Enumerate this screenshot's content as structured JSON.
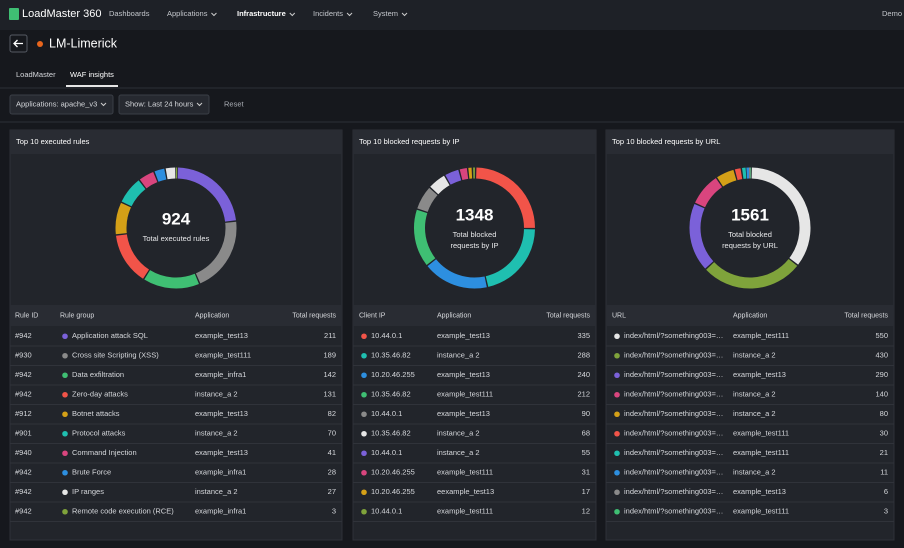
{
  "nav": {
    "brand": "LoadMaster 360",
    "items": [
      "Dashboards",
      "Applications",
      "Infrastructure",
      "Incidents",
      "System"
    ],
    "user": "Demo"
  },
  "header": {
    "title": "LM-Limerick"
  },
  "tabs": [
    "LoadMaster",
    "WAF insights"
  ],
  "filters": [
    "Applications: apache_v3",
    "Show: Last 24 hours"
  ],
  "reset": "Reset",
  "panels": [
    {
      "title": "Top 10 executed rules",
      "total": 924,
      "total_label": [
        "Total executed rules"
      ],
      "columns": [
        "Rule ID",
        "Rule group",
        "Application",
        "Total requests"
      ],
      "rows": [
        {
          "cells": [
            "#942",
            "Application attack SQL",
            "example_test13"
          ],
          "value": 211,
          "color": "#7b61d9"
        },
        {
          "cells": [
            "#930",
            "Cross site Scripting (XSS)",
            "example_test111"
          ],
          "value": 189,
          "color": "#8a8a8a"
        },
        {
          "cells": [
            "#942",
            "Data exfiltration",
            "example_infra1"
          ],
          "value": 142,
          "color": "#3fbf73"
        },
        {
          "cells": [
            "#942",
            "Zero-day attacks",
            "instance_a 2"
          ],
          "value": 131,
          "color": "#f25449"
        },
        {
          "cells": [
            "#912",
            "Botnet attacks",
            "example_test13"
          ],
          "value": 82,
          "color": "#d4a017"
        },
        {
          "cells": [
            "#901",
            "Protocol attacks",
            "instance_a 2"
          ],
          "value": 70,
          "color": "#1fbfb0"
        },
        {
          "cells": [
            "#940",
            "Command Injection",
            "example_test13"
          ],
          "value": 41,
          "color": "#d9457e"
        },
        {
          "cells": [
            "#942",
            "Brute Force",
            "example_infra1"
          ],
          "value": 28,
          "color": "#2d8fe0"
        },
        {
          "cells": [
            "#942",
            "IP ranges",
            "instance_a 2"
          ],
          "value": 27,
          "color": "#e6e6e6"
        },
        {
          "cells": [
            "#942",
            "Remote code execution (RCE)",
            "example_infra1"
          ],
          "value": 3,
          "color": "#7fa33b"
        }
      ]
    },
    {
      "title": "Top 10 blocked requests by IP",
      "total": 1348,
      "total_label": [
        "Total blocked",
        "requests by IP"
      ],
      "columns": [
        "Client IP",
        "Application",
        "Total requests"
      ],
      "rows": [
        {
          "cells": [
            "10.44.0.1",
            "example_test13"
          ],
          "value": 335,
          "color": "#f25449"
        },
        {
          "cells": [
            "10.35.46.82",
            "instance_a 2"
          ],
          "value": 288,
          "color": "#1fbfb0"
        },
        {
          "cells": [
            "10.20.46.255",
            "example_test13"
          ],
          "value": 240,
          "color": "#2d8fe0"
        },
        {
          "cells": [
            "10.35.46.82",
            "example_test111"
          ],
          "value": 212,
          "color": "#3fbf73"
        },
        {
          "cells": [
            "10.44.0.1",
            "example_test13"
          ],
          "value": 90,
          "color": "#8a8a8a"
        },
        {
          "cells": [
            "10.35.46.82",
            "instance_a 2"
          ],
          "value": 68,
          "color": "#e6e6e6"
        },
        {
          "cells": [
            "10.44.0.1",
            "instance_a 2"
          ],
          "value": 55,
          "color": "#7b61d9"
        },
        {
          "cells": [
            "10.20.46.255",
            "example_test111"
          ],
          "value": 31,
          "color": "#d9457e"
        },
        {
          "cells": [
            "10.20.46.255",
            "eexample_test13"
          ],
          "value": 17,
          "color": "#d4a017"
        },
        {
          "cells": [
            "10.44.0.1",
            "example_test111"
          ],
          "value": 12,
          "color": "#7fa33b"
        }
      ]
    },
    {
      "title": "Top 10 blocked requests by URL",
      "total": 1561,
      "total_label": [
        "Total blocked",
        "requests by URL"
      ],
      "columns": [
        "URL",
        "Application",
        "Total requests"
      ],
      "rows": [
        {
          "cells": [
            "index/html/?something003=…",
            "example_test111"
          ],
          "value": 550,
          "color": "#e6e6e6"
        },
        {
          "cells": [
            "index/html/?something003=…",
            "instance_a 2"
          ],
          "value": 430,
          "color": "#7fa33b"
        },
        {
          "cells": [
            "index/html/?something003=…",
            "example_test13"
          ],
          "value": 290,
          "color": "#7b61d9"
        },
        {
          "cells": [
            "index/html/?something003=…",
            "instance_a 2"
          ],
          "value": 140,
          "color": "#d9457e"
        },
        {
          "cells": [
            "index/html/?something003=…",
            "instance_a 2"
          ],
          "value": 80,
          "color": "#d4a017"
        },
        {
          "cells": [
            "index/html/?something003=…",
            "example_test111"
          ],
          "value": 30,
          "color": "#f25449"
        },
        {
          "cells": [
            "index/html/?something003=…",
            "example_test111"
          ],
          "value": 21,
          "color": "#1fbfb0"
        },
        {
          "cells": [
            "index/html/?something003=…",
            "instance_a 2"
          ],
          "value": 11,
          "color": "#2d8fe0"
        },
        {
          "cells": [
            "index/html/?something003=…",
            "example_test13"
          ],
          "value": 6,
          "color": "#8a8a8a"
        },
        {
          "cells": [
            "index/html/?something003=…",
            "example_test111"
          ],
          "value": 3,
          "color": "#3fbf73"
        }
      ]
    }
  ]
}
